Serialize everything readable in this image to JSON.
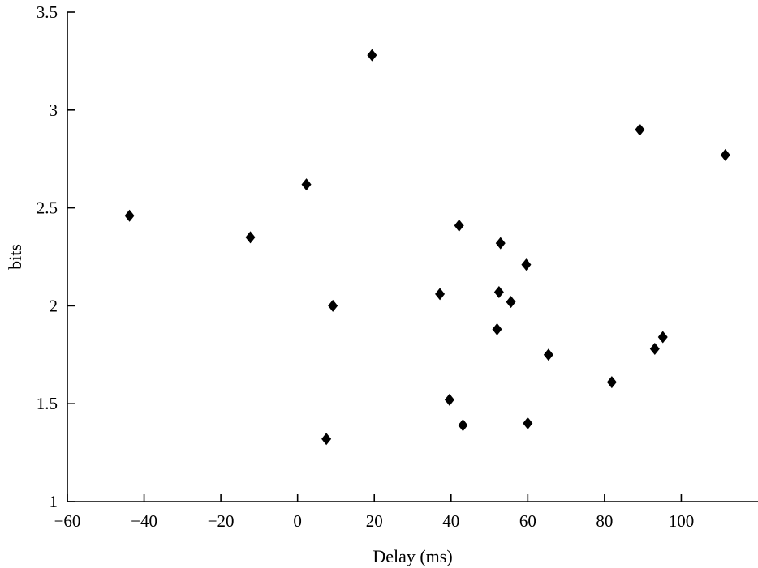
{
  "chart_data": {
    "type": "scatter",
    "title": "",
    "xlabel": "Delay (ms)",
    "ylabel": "bits",
    "xlim": [
      -60,
      120
    ],
    "ylim": [
      1,
      3.5
    ],
    "x_ticks": [
      -60,
      -40,
      -20,
      0,
      20,
      40,
      60,
      80,
      100
    ],
    "x_tick_labels": [
      "−60",
      "−40",
      "−20",
      "0",
      "20",
      "40",
      "60",
      "80",
      "100"
    ],
    "y_ticks": [
      1,
      1.5,
      2,
      2.5,
      3,
      3.5
    ],
    "y_tick_labels": [
      "1",
      "1.5",
      "2",
      "2.5",
      "3",
      "3.5"
    ],
    "grid": false,
    "marker": "diamond",
    "marker_color": "#000000",
    "series": [
      {
        "points": [
          {
            "x": -43.8,
            "y": 2.46
          },
          {
            "x": -12.3,
            "y": 2.35
          },
          {
            "x": 2.3,
            "y": 2.62
          },
          {
            "x": 7.5,
            "y": 1.32
          },
          {
            "x": 9.2,
            "y": 2.0
          },
          {
            "x": 19.4,
            "y": 3.28
          },
          {
            "x": 37.1,
            "y": 2.06
          },
          {
            "x": 39.6,
            "y": 1.52
          },
          {
            "x": 42.1,
            "y": 2.41
          },
          {
            "x": 43.1,
            "y": 1.39
          },
          {
            "x": 52.0,
            "y": 1.88
          },
          {
            "x": 52.5,
            "y": 2.07
          },
          {
            "x": 52.9,
            "y": 2.32
          },
          {
            "x": 55.6,
            "y": 2.02
          },
          {
            "x": 59.6,
            "y": 2.21
          },
          {
            "x": 60.0,
            "y": 1.4
          },
          {
            "x": 65.4,
            "y": 1.75
          },
          {
            "x": 81.9,
            "y": 1.61
          },
          {
            "x": 89.2,
            "y": 2.9
          },
          {
            "x": 93.1,
            "y": 1.78
          },
          {
            "x": 95.2,
            "y": 1.84
          },
          {
            "x": 111.5,
            "y": 2.77
          }
        ]
      }
    ]
  }
}
